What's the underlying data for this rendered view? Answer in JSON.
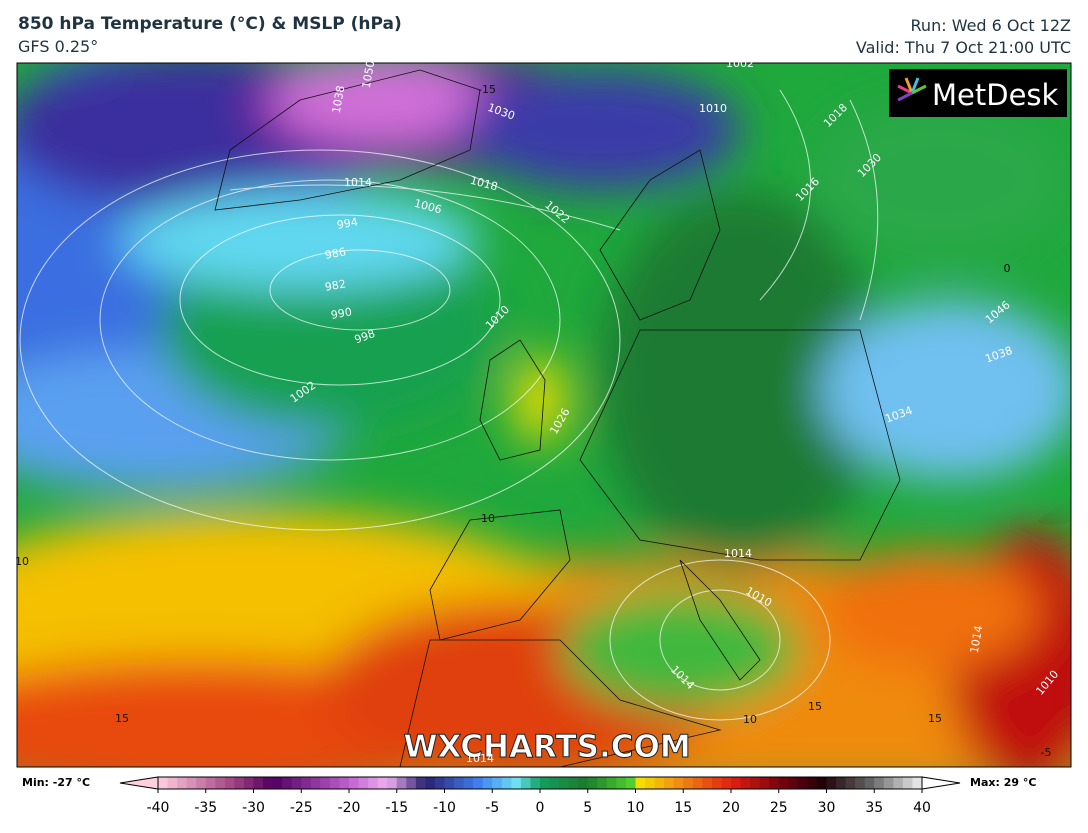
{
  "header": {
    "title": "850 hPa Temperature (°C) & MSLP (hPa)",
    "model": "GFS 0.25°",
    "run": "Run: Wed 6 Oct 12Z",
    "valid": "Valid: Thu 7 Oct 21:00 UTC"
  },
  "map": {
    "logo": "MetDesk",
    "watermark": "WXCHARTS.COM",
    "contour_labels": [
      "1038",
      "1050",
      "1030",
      "1014",
      "1018",
      "1006",
      "994",
      "986",
      "982",
      "990",
      "998",
      "1002",
      "1010",
      "1026",
      "1022",
      "1010",
      "1002",
      "1018",
      "1016",
      "1030",
      "1046",
      "1038",
      "1034",
      "1014",
      "1010",
      "1014",
      "1010",
      "1014",
      "10",
      "15",
      "15",
      "15",
      "10",
      "0",
      "-15",
      "-5",
      "10",
      "1014"
    ]
  },
  "colorbar": {
    "min_label": "Min: -27 °C",
    "max_label": "Max: 29 °C",
    "ticks": [
      -40,
      -35,
      -30,
      -25,
      -20,
      -15,
      -10,
      -5,
      0,
      5,
      10,
      15,
      20,
      25,
      30,
      35,
      40
    ]
  }
}
